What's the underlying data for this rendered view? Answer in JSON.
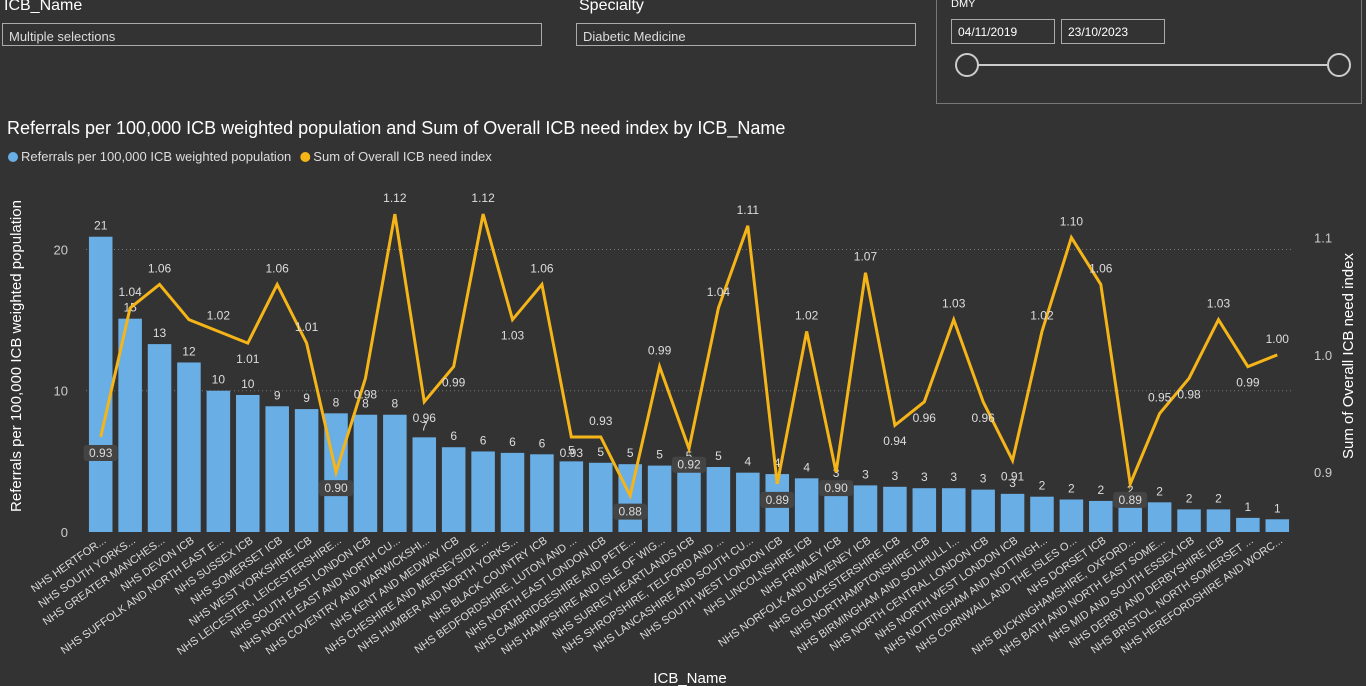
{
  "filters": {
    "icb": {
      "label": "ICB_Name",
      "value": "Multiple selections"
    },
    "specialty": {
      "label": "Specialty",
      "value": "Diabetic Medicine"
    },
    "date": {
      "label": "DMY",
      "start": "04/11/2019",
      "end": "23/10/2023"
    }
  },
  "chart_data": {
    "type": "bar-line",
    "title": "Referrals per 100,000 ICB weighted population and Sum of Overall ICB need index by ICB_Name",
    "x_label": "ICB_Name",
    "y_label": "Referrals per 100,000 ICB weighted population",
    "y2_label": "Sum of Overall ICB need index",
    "categories": [
      "NHS HERTFOR...",
      "NHS SOUTH YORKS...",
      "NHS GREATER MANCHES...",
      "NHS DEVON ICB",
      "NHS SUFFOLK AND NORTH EAST E...",
      "NHS SUSSEX ICB",
      "NHS SOMERSET ICB",
      "NHS WEST YORKSHIRE ICB",
      "NHS LEICESTER, LEICESTERSHIRE...",
      "NHS SOUTH EAST LONDON ICB",
      "NHS NORTH EAST AND NORTH CU...",
      "NHS COVENTRY AND WARWICKSHI...",
      "NHS KENT AND MEDWAY ICB",
      "NHS CHESHIRE AND MERSEYSIDE ...",
      "NHS HUMBER AND NORTH YORKS...",
      "NHS BLACK COUNTRY ICB",
      "NHS BEDFORDSHIRE, LUTON AND ...",
      "NHS NORTH EAST LONDON ICB",
      "NHS CAMBRIDGESHIRE AND PETE...",
      "NHS HAMPSHIRE AND ISLE OF WIG...",
      "NHS SURREY HEARTLANDS ICB",
      "NHS SHROPSHIRE, TELFORD AND ...",
      "NHS LANCASHIRE AND SOUTH CU...",
      "NHS SOUTH WEST LONDON ICB",
      "NHS LINCOLNSHIRE ICB",
      "NHS FRIMLEY ICB",
      "NHS NORFOLK AND WAVENEY ICB",
      "NHS GLOUCESTERSHIRE ICB",
      "NHS NORTHAMPTONSHIRE ICB",
      "NHS BIRMINGHAM AND SOLIHULL I...",
      "NHS NORTH CENTRAL LONDON ICB",
      "NHS NORTH WEST LONDON ICB",
      "NHS NOTTINGHAM AND NOTTINGH...",
      "NHS CORNWALL AND THE ISLES O...",
      "NHS DORSET ICB",
      "NHS BUCKINGHAMSHIRE, OXFORD...",
      "NHS BATH AND NORTH EAST SOME...",
      "NHS MID AND SOUTH ESSEX ICB",
      "NHS DERBY AND DERBYSHIRE ICB",
      "NHS BRISTOL, NORTH SOMERSET ...",
      "NHS HEREFORDSHIRE AND WORC..."
    ],
    "series": [
      {
        "name": "Referrals per 100,000 ICB  weighted population",
        "color": "#6aaee6",
        "values": [
          20.9,
          15.1,
          13.3,
          12.0,
          10.0,
          9.7,
          8.9,
          8.7,
          8.4,
          8.3,
          8.3,
          6.7,
          6.0,
          5.7,
          5.6,
          5.5,
          5.0,
          4.9,
          4.8,
          4.7,
          4.6,
          4.6,
          4.2,
          4.1,
          3.8,
          3.4,
          3.3,
          3.2,
          3.1,
          3.1,
          3.0,
          2.7,
          2.5,
          2.3,
          2.2,
          2.2,
          2.1,
          1.6,
          1.6,
          1.0,
          0.9
        ],
        "value_labels": [
          "21",
          "15",
          "13",
          "12",
          "10",
          "10",
          "9",
          "9",
          "8",
          "8",
          "8",
          "7",
          "6",
          "6",
          "6",
          "6",
          "5",
          "5",
          "5",
          "5",
          "5",
          "5",
          "4",
          "4",
          "4",
          "3",
          "3",
          "3",
          "3",
          "3",
          "3",
          "3",
          "2",
          "2",
          "2",
          "2",
          "2",
          "2",
          "2",
          "1",
          "1"
        ]
      },
      {
        "name": "Sum of Overall ICB need index",
        "color": "#f5b519",
        "axis": "y2",
        "values": [
          0.93,
          1.04,
          1.06,
          1.03,
          1.02,
          1.01,
          1.06,
          1.01,
          0.9,
          0.98,
          1.12,
          0.96,
          0.99,
          1.12,
          1.03,
          1.06,
          0.93,
          0.93,
          0.88,
          0.99,
          0.92,
          1.04,
          1.11,
          0.89,
          1.02,
          0.9,
          1.07,
          0.94,
          0.96,
          1.03,
          0.96,
          0.91,
          1.02,
          1.1,
          1.06,
          0.89,
          0.95,
          0.98,
          1.03,
          0.99,
          1.0
        ],
        "value_labels": [
          "0.93",
          "1.04",
          "1.06",
          null,
          "1.02",
          "1.01",
          "1.06",
          "1.01",
          "0.90",
          "0.98",
          "1.12",
          "0.96",
          "0.99",
          "1.12",
          "1.03",
          "1.06",
          "0.93",
          "0.93",
          "0.88",
          "0.99",
          "0.92",
          "1.04",
          "1.11",
          "0.89",
          "1.02",
          "0.90",
          "1.07",
          "0.94",
          "0.96",
          "1.03",
          "0.96",
          "0.91",
          "1.02",
          "1.10",
          "1.06",
          "0.89",
          "0.95",
          "0.98",
          "1.03",
          "0.99",
          "1.00"
        ]
      }
    ],
    "ylim": [
      0,
      23.5
    ],
    "yticks": [
      0,
      10,
      20
    ],
    "y2lim": [
      0.849,
      1.132
    ],
    "y2ticks": [
      0.9,
      {
        "value": 1.0,
        "label": "1.0"
      },
      1.1
    ],
    "grid": true
  }
}
